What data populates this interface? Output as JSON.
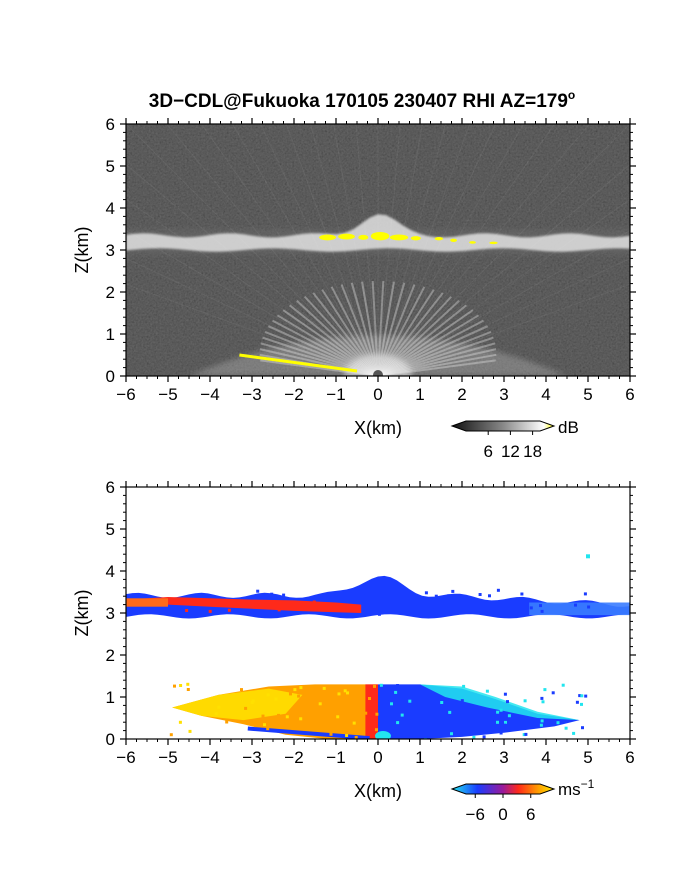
{
  "title": "3D−CDL@Fukuoka 170105 230407 RHI AZ=179",
  "title_superscript": "o",
  "colors": {
    "background_top": "#262626",
    "echo_gray": "#e6e6e6",
    "echo_yellow": "#ffff00",
    "doppler_blue": "#1a3cff",
    "doppler_red": "#ff2a1a",
    "doppler_orange": "#ffa000",
    "doppler_yellow": "#ffe000",
    "doppler_cyan": "#22e5ee"
  },
  "chart_data": [
    {
      "type": "heatmap",
      "name": "intensity",
      "xlabel": "X(km)",
      "ylabel": "Z(km)",
      "xlim": [
        -6,
        6
      ],
      "ylim": [
        0,
        6
      ],
      "xticks": [
        "−6",
        "−5",
        "−4",
        "−3",
        "−2",
        "−1",
        "0",
        "1",
        "2",
        "3",
        "4",
        "5",
        "6"
      ],
      "yticks": [
        "0",
        "1",
        "2",
        "3",
        "4",
        "5",
        "6"
      ],
      "colorbar": {
        "ticks": [
          "6",
          "12",
          "18"
        ],
        "tick_values": [
          6,
          12,
          18
        ],
        "range": [
          0,
          20
        ],
        "unit": "dB"
      },
      "features": [
        {
          "kind": "cloud_layer",
          "x": [
            -6,
            6
          ],
          "z_bottom": 3.0,
          "z_top": 3.35,
          "peak_z": 3.85,
          "peak_x": 0.0
        },
        {
          "kind": "strong_echo",
          "x": [
            -1.4,
            2.9
          ],
          "z": [
            3.1,
            3.45
          ]
        },
        {
          "kind": "near_surface_fan",
          "x": [
            -4.5,
            4.5
          ],
          "z_top": 1.1
        },
        {
          "kind": "ground_line",
          "x": [
            -3.3,
            -0.5
          ],
          "z": [
            0.5,
            0.12
          ]
        }
      ]
    },
    {
      "type": "heatmap",
      "name": "doppler_velocity",
      "xlabel": "X(km)",
      "ylabel": "Z(km)",
      "xlim": [
        -6,
        6
      ],
      "ylim": [
        0,
        6
      ],
      "xticks": [
        "−6",
        "−5",
        "−4",
        "−3",
        "−2",
        "−1",
        "0",
        "1",
        "2",
        "3",
        "4",
        "5",
        "6"
      ],
      "yticks": [
        "0",
        "1",
        "2",
        "3",
        "4",
        "5",
        "6"
      ],
      "colorbar": {
        "ticks": [
          "−6",
          "0",
          "6"
        ],
        "tick_values": [
          -6,
          0,
          6
        ],
        "range": [
          -8,
          8
        ],
        "unit": "ms",
        "unit_superscript": "−1"
      },
      "features": [
        {
          "kind": "cloud_layer",
          "x": [
            -6,
            6
          ],
          "z": [
            2.85,
            3.85
          ],
          "velocity": "negative"
        },
        {
          "kind": "cloud_base",
          "x": [
            -6,
            -0.3
          ],
          "z": [
            2.95,
            3.35
          ],
          "velocity": "positive"
        },
        {
          "kind": "boundary_layer",
          "x": [
            -4.9,
            0
          ],
          "z": [
            0,
            1.3
          ],
          "velocity": "positive"
        },
        {
          "kind": "boundary_layer",
          "x": [
            0,
            4.8
          ],
          "z": [
            0,
            1.3
          ],
          "velocity": "negative"
        }
      ]
    }
  ]
}
